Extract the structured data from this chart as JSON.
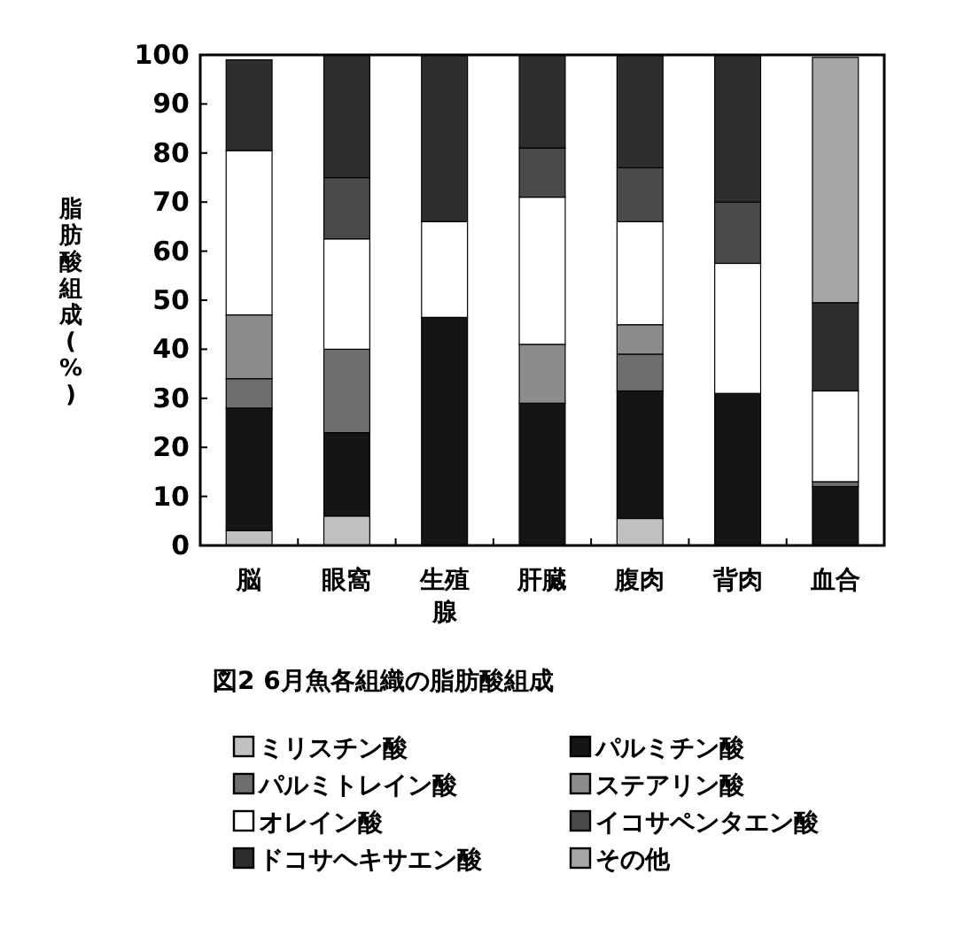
{
  "chart_data": {
    "type": "bar",
    "stacked": true,
    "title": "図2 6月魚各組織の脂肪酸組成",
    "ylabel": "脂肪酸組成(%)",
    "categories": [
      "脳",
      "眼窩",
      "生殖腺",
      "肝臓",
      "腹肉",
      "背肉",
      "血合"
    ],
    "ylim": [
      0,
      100
    ],
    "yticks": [
      0,
      10,
      20,
      30,
      40,
      50,
      60,
      70,
      80,
      90,
      100
    ],
    "legend": "bottom",
    "grid": false,
    "series": [
      {
        "name": "ミリスチン酸",
        "color": "#c0c0c0",
        "values": [
          3,
          6,
          0,
          0,
          5.5,
          0,
          0
        ]
      },
      {
        "name": "パルミチン酸",
        "color": "#151515",
        "values": [
          25,
          17,
          46.5,
          29,
          26,
          31,
          12
        ]
      },
      {
        "name": "パルミトレイン酸",
        "color": "#6e6e6e",
        "values": [
          6,
          17,
          0,
          0,
          7.5,
          0,
          1
        ]
      },
      {
        "name": "ステアリン酸",
        "color": "#8c8c8c",
        "values": [
          13,
          0,
          0,
          12,
          6,
          0,
          0
        ]
      },
      {
        "name": "オレイン酸",
        "color": "#ffffff",
        "values": [
          33.5,
          22.5,
          19.5,
          30,
          21,
          26.5,
          18.5
        ]
      },
      {
        "name": "イコサペンタエン酸",
        "color": "#4a4a4a",
        "values": [
          0,
          12.5,
          0,
          10,
          11,
          12.5,
          0
        ]
      },
      {
        "name": "ドコサヘキサエン酸",
        "color": "#2e2e2e",
        "values": [
          18.5,
          25,
          34,
          19,
          23,
          30,
          18
        ]
      },
      {
        "name": "その他",
        "color": "#a6a6a6",
        "values": [
          0,
          0,
          0,
          0,
          0,
          0,
          50
        ]
      }
    ]
  }
}
